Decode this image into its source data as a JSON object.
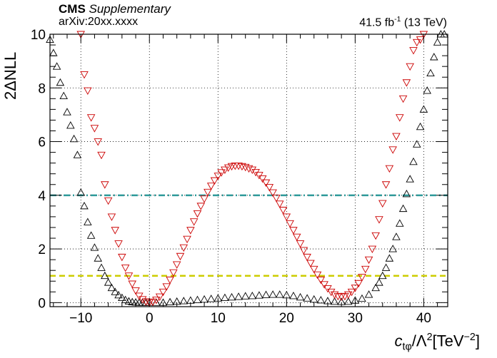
{
  "header": {
    "experiment": "CMS",
    "tag": "Supplementary",
    "arxiv": "arXiv:20xx.xxxx",
    "lumi_value": "41.5 fb",
    "lumi_exp": "-1",
    "energy": " (13 TeV)"
  },
  "axes": {
    "y_title": "2ΔNLL",
    "x_title_main": "c",
    "x_title_sub": "tφ",
    "x_title_mid": "/Λ",
    "x_title_sup": "2",
    "x_title_unit": "[TeV",
    "x_title_unit_sup": "−2",
    "x_title_end": "]"
  },
  "chart_data": {
    "type": "scatter",
    "xlim": [
      -14.5,
      43.5
    ],
    "ylim": [
      -0.15,
      10
    ],
    "x_ticks": [
      -10,
      0,
      10,
      20,
      30,
      40
    ],
    "y_ticks": [
      0,
      2,
      4,
      6,
      8,
      10
    ],
    "grid": true,
    "reference_lines": [
      {
        "y": 4,
        "style": "dash-dot",
        "color": "#2e9a9a"
      },
      {
        "y": 1,
        "style": "dashed",
        "color": "#cccc00"
      }
    ],
    "series": [
      {
        "marker": "triangle-up",
        "color": "#000000",
        "x": [
          -14.5,
          -14,
          -13.5,
          -13,
          -12.5,
          -12,
          -11.5,
          -11,
          -10.5,
          -10,
          -9.5,
          -9,
          -8.5,
          -8,
          -7.5,
          -7,
          -6.5,
          -6,
          -5.5,
          -5,
          -4.5,
          -4,
          -3.5,
          -3,
          -2.5,
          -2,
          -1.5,
          -1,
          -0.5,
          0,
          1,
          2,
          3,
          4,
          5,
          6,
          7,
          8,
          9,
          10,
          11,
          12,
          13,
          14,
          15,
          16,
          17,
          18,
          19,
          20,
          21,
          22,
          23,
          24,
          25,
          26,
          27,
          28,
          29,
          30,
          31,
          32,
          33,
          33.5,
          34,
          34.5,
          35,
          35.5,
          36,
          36.5,
          37,
          37.5,
          38,
          38.5,
          39,
          39.5,
          40,
          40.5,
          41,
          41.5,
          42,
          42.5,
          43
        ],
        "y": [
          9.8,
          9.3,
          8.8,
          8.2,
          7.7,
          7.1,
          6.6,
          6.1,
          5.5,
          4.1,
          3.6,
          3.0,
          2.5,
          2.05,
          1.65,
          1.3,
          1.0,
          0.75,
          0.55,
          0.4,
          0.28,
          0.18,
          0.1,
          0.05,
          0.02,
          0.01,
          0.0,
          0.0,
          0.0,
          0.0,
          0.0,
          0.0,
          0.02,
          0.04,
          0.06,
          0.08,
          0.1,
          0.12,
          0.14,
          0.16,
          0.18,
          0.2,
          0.22,
          0.24,
          0.25,
          0.27,
          0.29,
          0.3,
          0.3,
          0.28,
          0.25,
          0.2,
          0.16,
          0.12,
          0.09,
          0.06,
          0.04,
          0.03,
          0.04,
          0.08,
          0.15,
          0.3,
          0.55,
          0.75,
          1.0,
          1.3,
          1.65,
          2.0,
          2.45,
          2.95,
          3.5,
          4.05,
          4.6,
          5.25,
          5.9,
          6.55,
          7.2,
          7.9,
          8.55,
          9.15,
          9.7,
          10.0,
          10.0
        ]
      },
      {
        "marker": "triangle-down",
        "color": "#cc0000",
        "x": [
          -10,
          -9.5,
          -9,
          -8.5,
          -8,
          -7.5,
          -7,
          -6.5,
          -6,
          -5.5,
          -5,
          -4.5,
          -4,
          -3.5,
          -3,
          -2.5,
          -2,
          -1.5,
          -1,
          -0.5,
          0,
          0.5,
          1,
          1.5,
          2,
          2.5,
          3,
          3.5,
          4,
          4.5,
          5,
          5.5,
          6,
          6.5,
          7,
          7.5,
          8,
          8.5,
          9,
          9.5,
          10,
          10.5,
          11,
          11.5,
          12,
          12.5,
          13,
          13.5,
          14,
          14.5,
          15,
          15.5,
          16,
          16.5,
          17,
          17.5,
          18,
          18.5,
          19,
          19.5,
          20,
          20.5,
          21,
          21.5,
          22,
          22.5,
          23,
          23.5,
          24,
          24.5,
          25,
          25.5,
          26,
          26.5,
          27,
          27.5,
          28,
          28.5,
          29,
          29.5,
          30,
          30.5,
          31,
          31.5,
          32,
          32.5,
          33,
          33.5,
          34,
          34.5,
          35,
          35.5,
          36,
          36.5,
          37,
          37.5,
          38,
          38.5,
          39,
          39.5,
          40
        ],
        "y": [
          10.0,
          8.5,
          7.9,
          6.9,
          6.5,
          6.0,
          5.5,
          4.4,
          3.8,
          3.2,
          2.7,
          2.2,
          1.7,
          1.3,
          1.0,
          0.7,
          0.45,
          0.25,
          0.12,
          0.04,
          0.0,
          0.03,
          0.1,
          0.22,
          0.4,
          0.6,
          0.85,
          1.12,
          1.42,
          1.73,
          2.05,
          2.37,
          2.7,
          3.02,
          3.32,
          3.6,
          3.87,
          4.12,
          4.35,
          4.55,
          4.72,
          4.85,
          4.95,
          5.03,
          5.08,
          5.1,
          5.1,
          5.08,
          5.05,
          5.0,
          4.95,
          4.86,
          4.75,
          4.62,
          4.47,
          4.3,
          4.1,
          3.9,
          3.68,
          3.45,
          3.2,
          2.95,
          2.7,
          2.45,
          2.2,
          1.95,
          1.7,
          1.47,
          1.25,
          1.04,
          0.85,
          0.68,
          0.53,
          0.4,
          0.3,
          0.24,
          0.22,
          0.24,
          0.3,
          0.4,
          0.55,
          0.72,
          0.95,
          1.25,
          1.6,
          2.0,
          2.5,
          3.1,
          3.7,
          4.4,
          5.0,
          5.7,
          6.2,
          6.9,
          7.6,
          8.2,
          8.8,
          9.4,
          9.7,
          9.8,
          10.0
        ]
      }
    ]
  }
}
